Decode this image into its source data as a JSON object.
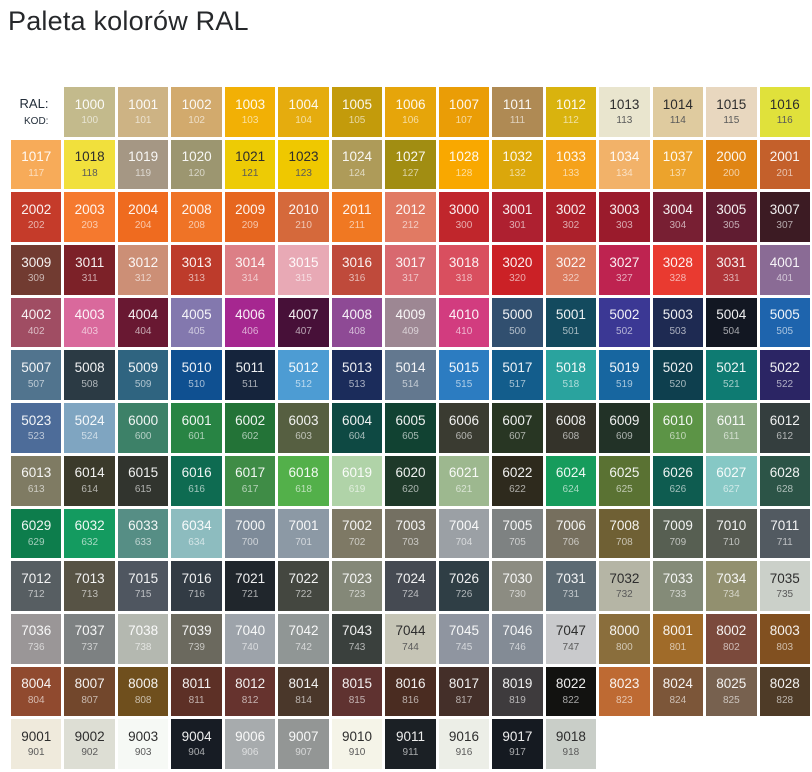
{
  "title": "Paleta kolorów RAL",
  "legend": {
    "ral_label": "RAL:",
    "kod_label": "KOD:"
  },
  "chart_data": {
    "type": "table",
    "title": "Paleta kolorów RAL",
    "grid_columns": 15,
    "first_cell": "row-header-labels (RAL: / KOD:)",
    "cells": [
      {
        "ral": "1000",
        "kod": "100",
        "hex": "#C3BA8C"
      },
      {
        "ral": "1001",
        "kod": "101",
        "hex": "#CDB384"
      },
      {
        "ral": "1002",
        "kod": "102",
        "hex": "#D2AA6D"
      },
      {
        "ral": "1003",
        "kod": "103",
        "hex": "#F2B005"
      },
      {
        "ral": "1004",
        "kod": "104",
        "hex": "#E5AC0E"
      },
      {
        "ral": "1005",
        "kod": "105",
        "hex": "#C39B0B"
      },
      {
        "ral": "1006",
        "kod": "106",
        "hex": "#E6A50A"
      },
      {
        "ral": "1007",
        "kod": "107",
        "hex": "#EA9D06"
      },
      {
        "ral": "1011",
        "kod": "111",
        "hex": "#AF8A54"
      },
      {
        "ral": "1012",
        "kod": "112",
        "hex": "#D9B30E"
      },
      {
        "ral": "1013",
        "kod": "113",
        "hex": "#E9E5CE",
        "dark": true
      },
      {
        "ral": "1014",
        "kod": "114",
        "hex": "#DFCB9F",
        "dark": true
      },
      {
        "ral": "1015",
        "kod": "115",
        "hex": "#E8D7BF",
        "dark": true
      },
      {
        "ral": "1016",
        "kod": "116",
        "hex": "#E0E13B",
        "dark": true
      },
      {
        "ral": "1017",
        "kod": "117",
        "hex": "#F7AB59"
      },
      {
        "ral": "1018",
        "kod": "118",
        "hex": "#F1E03C",
        "dark": true
      },
      {
        "ral": "1019",
        "kod": "119",
        "hex": "#A59784"
      },
      {
        "ral": "1020",
        "kod": "120",
        "hex": "#9C9670"
      },
      {
        "ral": "1021",
        "kod": "121",
        "hex": "#EDCB05",
        "dark": true
      },
      {
        "ral": "1023",
        "kod": "123",
        "hex": "#EFC800",
        "dark": true
      },
      {
        "ral": "1024",
        "kod": "124",
        "hex": "#AE9B59"
      },
      {
        "ral": "1027",
        "kod": "127",
        "hex": "#A18D12"
      },
      {
        "ral": "1028",
        "kod": "128",
        "hex": "#F9A800"
      },
      {
        "ral": "1032",
        "kod": "132",
        "hex": "#DBA70B"
      },
      {
        "ral": "1033",
        "kod": "133",
        "hex": "#F5A21B"
      },
      {
        "ral": "1034",
        "kod": "134",
        "hex": "#F2B269"
      },
      {
        "ral": "1037",
        "kod": "137",
        "hex": "#ECA32C"
      },
      {
        "ral": "2000",
        "kod": "200",
        "hex": "#E08514"
      },
      {
        "ral": "2001",
        "kod": "201",
        "hex": "#C4602B"
      },
      {
        "ral": "2002",
        "kod": "202",
        "hex": "#C53B2A"
      },
      {
        "ral": "2003",
        "kod": "203",
        "hex": "#F5792E"
      },
      {
        "ral": "2004",
        "kod": "204",
        "hex": "#EF6B1F"
      },
      {
        "ral": "2008",
        "kod": "208",
        "hex": "#EF7326"
      },
      {
        "ral": "2009",
        "kod": "209",
        "hex": "#E6661F"
      },
      {
        "ral": "2010",
        "kod": "210",
        "hex": "#D5693B"
      },
      {
        "ral": "2011",
        "kod": "211",
        "hex": "#F07822"
      },
      {
        "ral": "2012",
        "kod": "212",
        "hex": "#E17A63"
      },
      {
        "ral": "3000",
        "kod": "300",
        "hex": "#C0262C"
      },
      {
        "ral": "3001",
        "kod": "301",
        "hex": "#AE2030"
      },
      {
        "ral": "3002",
        "kod": "302",
        "hex": "#AC202B"
      },
      {
        "ral": "3003",
        "kod": "303",
        "hex": "#9A1B2C"
      },
      {
        "ral": "3004",
        "kod": "304",
        "hex": "#781F33"
      },
      {
        "ral": "3005",
        "kod": "305",
        "hex": "#601C31"
      },
      {
        "ral": "3007",
        "kod": "307",
        "hex": "#3C1B23"
      },
      {
        "ral": "3009",
        "kod": "309",
        "hex": "#713B31"
      },
      {
        "ral": "3011",
        "kod": "311",
        "hex": "#7C2128"
      },
      {
        "ral": "3012",
        "kod": "312",
        "hex": "#CC8F76"
      },
      {
        "ral": "3013",
        "kod": "313",
        "hex": "#BD3B2B"
      },
      {
        "ral": "3014",
        "kod": "314",
        "hex": "#DC7F86"
      },
      {
        "ral": "3015",
        "kod": "315",
        "hex": "#E8A9B5"
      },
      {
        "ral": "3016",
        "kod": "316",
        "hex": "#BF4A3B"
      },
      {
        "ral": "3017",
        "kod": "317",
        "hex": "#D8696F"
      },
      {
        "ral": "3018",
        "kod": "318",
        "hex": "#D94F5F"
      },
      {
        "ral": "3020",
        "kod": "320",
        "hex": "#CB2126"
      },
      {
        "ral": "3022",
        "kod": "322",
        "hex": "#DA795C"
      },
      {
        "ral": "3027",
        "kod": "327",
        "hex": "#BE2350"
      },
      {
        "ral": "3028",
        "kod": "328",
        "hex": "#E93A30"
      },
      {
        "ral": "3031",
        "kod": "331",
        "hex": "#AE3338"
      },
      {
        "ral": "4001",
        "kod": "401",
        "hex": "#8A6B95"
      },
      {
        "ral": "4002",
        "kod": "402",
        "hex": "#A04D63"
      },
      {
        "ral": "4003",
        "kod": "403",
        "hex": "#D9699C"
      },
      {
        "ral": "4004",
        "kod": "404",
        "hex": "#691832"
      },
      {
        "ral": "4005",
        "kod": "405",
        "hex": "#8378AE"
      },
      {
        "ral": "4006",
        "kod": "406",
        "hex": "#A62790"
      },
      {
        "ral": "4007",
        "kod": "407",
        "hex": "#471038"
      },
      {
        "ral": "4008",
        "kod": "408",
        "hex": "#8E4A95"
      },
      {
        "ral": "4009",
        "kod": "409",
        "hex": "#9D8793"
      },
      {
        "ral": "4010",
        "kod": "410",
        "hex": "#D23C7F"
      },
      {
        "ral": "5000",
        "kod": "500",
        "hex": "#314F6F"
      },
      {
        "ral": "5001",
        "kod": "501",
        "hex": "#134A5E"
      },
      {
        "ral": "5002",
        "kod": "502",
        "hex": "#3B3894"
      },
      {
        "ral": "5003",
        "kod": "503",
        "hex": "#1E2A52"
      },
      {
        "ral": "5004",
        "kod": "504",
        "hex": "#121722"
      },
      {
        "ral": "5005",
        "kod": "505",
        "hex": "#1E64AD"
      },
      {
        "ral": "5007",
        "kod": "507",
        "hex": "#51748E"
      },
      {
        "ral": "5008",
        "kod": "508",
        "hex": "#2B3A44"
      },
      {
        "ral": "5009",
        "kod": "509",
        "hex": "#2F6480"
      },
      {
        "ral": "5010",
        "kod": "510",
        "hex": "#0F5091"
      },
      {
        "ral": "5011",
        "kod": "511",
        "hex": "#15243C"
      },
      {
        "ral": "5012",
        "kod": "512",
        "hex": "#4D9CD3"
      },
      {
        "ral": "5013",
        "kod": "513",
        "hex": "#1B2C5B"
      },
      {
        "ral": "5014",
        "kod": "514",
        "hex": "#63788F"
      },
      {
        "ral": "5015",
        "kod": "515",
        "hex": "#2C7CC1"
      },
      {
        "ral": "5017",
        "kod": "517",
        "hex": "#135D8C"
      },
      {
        "ral": "5018",
        "kod": "518",
        "hex": "#2AA39E"
      },
      {
        "ral": "5019",
        "kod": "519",
        "hex": "#1766A0"
      },
      {
        "ral": "5020",
        "kod": "520",
        "hex": "#0E3F4E"
      },
      {
        "ral": "5021",
        "kod": "521",
        "hex": "#0E7B72"
      },
      {
        "ral": "5022",
        "kod": "522",
        "hex": "#2B2564"
      },
      {
        "ral": "5023",
        "kod": "523",
        "hex": "#4D6C99"
      },
      {
        "ral": "5024",
        "kod": "524",
        "hex": "#7FA5C1"
      },
      {
        "ral": "6000",
        "kod": "600",
        "hex": "#3D8168"
      },
      {
        "ral": "6001",
        "kod": "601",
        "hex": "#288444"
      },
      {
        "ral": "6002",
        "kod": "602",
        "hex": "#237337"
      },
      {
        "ral": "6003",
        "kod": "603",
        "hex": "#565F41"
      },
      {
        "ral": "6004",
        "kod": "604",
        "hex": "#0E4943"
      },
      {
        "ral": "6005",
        "kod": "605",
        "hex": "#114232"
      },
      {
        "ral": "6006",
        "kod": "606",
        "hex": "#3A3B31"
      },
      {
        "ral": "6007",
        "kod": "607",
        "hex": "#283623"
      },
      {
        "ral": "6008",
        "kod": "608",
        "hex": "#34332A"
      },
      {
        "ral": "6009",
        "kod": "609",
        "hex": "#223227"
      },
      {
        "ral": "6010",
        "kod": "610",
        "hex": "#5C9446"
      },
      {
        "ral": "6011",
        "kod": "611",
        "hex": "#8AA882"
      },
      {
        "ral": "6012",
        "kod": "612",
        "hex": "#343E3E"
      },
      {
        "ral": "6013",
        "kod": "613",
        "hex": "#7F7B63"
      },
      {
        "ral": "6014",
        "kod": "614",
        "hex": "#3B3A2B"
      },
      {
        "ral": "6015",
        "kod": "615",
        "hex": "#31342E"
      },
      {
        "ral": "6016",
        "kod": "616",
        "hex": "#0E6B51"
      },
      {
        "ral": "6017",
        "kod": "617",
        "hex": "#3F8C46"
      },
      {
        "ral": "6018",
        "kod": "618",
        "hex": "#53B04A"
      },
      {
        "ral": "6019",
        "kod": "619",
        "hex": "#B0D3A8"
      },
      {
        "ral": "6020",
        "kod": "620",
        "hex": "#1E3929"
      },
      {
        "ral": "6021",
        "kod": "621",
        "hex": "#9DB88F"
      },
      {
        "ral": "6022",
        "kod": "622",
        "hex": "#2E2A1D"
      },
      {
        "ral": "6024",
        "kod": "624",
        "hex": "#169C5C"
      },
      {
        "ral": "6025",
        "kod": "625",
        "hex": "#5A7233"
      },
      {
        "ral": "6026",
        "kod": "626",
        "hex": "#0E5C50"
      },
      {
        "ral": "6027",
        "kod": "627",
        "hex": "#86C8C5"
      },
      {
        "ral": "6028",
        "kod": "628",
        "hex": "#2C5447"
      },
      {
        "ral": "6029",
        "kod": "629",
        "hex": "#0D7D4C"
      },
      {
        "ral": "6032",
        "kod": "632",
        "hex": "#149B60"
      },
      {
        "ral": "6033",
        "kod": "633",
        "hex": "#568E85"
      },
      {
        "ral": "6034",
        "kod": "634",
        "hex": "#8DBCBF"
      },
      {
        "ral": "7000",
        "kod": "700",
        "hex": "#7E8B99"
      },
      {
        "ral": "7001",
        "kod": "701",
        "hex": "#8C99A5"
      },
      {
        "ral": "7002",
        "kod": "702",
        "hex": "#7E7965"
      },
      {
        "ral": "7003",
        "kod": "703",
        "hex": "#747062"
      },
      {
        "ral": "7004",
        "kod": "704",
        "hex": "#9BA0A5"
      },
      {
        "ral": "7005",
        "kod": "705",
        "hex": "#7E8282"
      },
      {
        "ral": "7006",
        "kod": "706",
        "hex": "#766F5E"
      },
      {
        "ral": "7008",
        "kod": "708",
        "hex": "#6F6034"
      },
      {
        "ral": "7009",
        "kod": "709",
        "hex": "#575F52"
      },
      {
        "ral": "7010",
        "kod": "710",
        "hex": "#555950"
      },
      {
        "ral": "7011",
        "kod": "711",
        "hex": "#525A61"
      },
      {
        "ral": "7012",
        "kod": "712",
        "hex": "#575E62"
      },
      {
        "ral": "7013",
        "kod": "713",
        "hex": "#575345"
      },
      {
        "ral": "7015",
        "kod": "715",
        "hex": "#4F5660"
      },
      {
        "ral": "7016",
        "kod": "716",
        "hex": "#323B44"
      },
      {
        "ral": "7021",
        "kod": "721",
        "hex": "#20262C"
      },
      {
        "ral": "7022",
        "kod": "722",
        "hex": "#444740"
      },
      {
        "ral": "7023",
        "kod": "723",
        "hex": "#848878"
      },
      {
        "ral": "7024",
        "kod": "724",
        "hex": "#454A52"
      },
      {
        "ral": "7026",
        "kod": "726",
        "hex": "#2F3E45"
      },
      {
        "ral": "7030",
        "kod": "730",
        "hex": "#8C8C82"
      },
      {
        "ral": "7031",
        "kod": "731",
        "hex": "#5C6A73"
      },
      {
        "ral": "7032",
        "kod": "732",
        "hex": "#B5B5A5",
        "dark": true
      },
      {
        "ral": "7033",
        "kod": "733",
        "hex": "#848B78"
      },
      {
        "ral": "7034",
        "kod": "734",
        "hex": "#92906F"
      },
      {
        "ral": "7035",
        "kod": "735",
        "hex": "#CBD0C9",
        "dark": true
      },
      {
        "ral": "7036",
        "kod": "736",
        "hex": "#9A9697"
      },
      {
        "ral": "7037",
        "kod": "737",
        "hex": "#7D8182"
      },
      {
        "ral": "7038",
        "kod": "738",
        "hex": "#B4B8B0"
      },
      {
        "ral": "7039",
        "kod": "739",
        "hex": "#6B695E"
      },
      {
        "ral": "7040",
        "kod": "740",
        "hex": "#9DA3AA"
      },
      {
        "ral": "7042",
        "kod": "742",
        "hex": "#909695"
      },
      {
        "ral": "7043",
        "kod": "743",
        "hex": "#3A403D"
      },
      {
        "ral": "7044",
        "kod": "744",
        "hex": "#C6C5B6",
        "dark": true
      },
      {
        "ral": "7045",
        "kod": "745",
        "hex": "#8F95A0"
      },
      {
        "ral": "7046",
        "kod": "746",
        "hex": "#838B95"
      },
      {
        "ral": "7047",
        "kod": "747",
        "hex": "#C9CACC",
        "dark": true
      },
      {
        "ral": "8000",
        "kod": "800",
        "hex": "#8A6E3C"
      },
      {
        "ral": "8001",
        "kod": "801",
        "hex": "#A06B29"
      },
      {
        "ral": "8002",
        "kod": "802",
        "hex": "#7B4A3C"
      },
      {
        "ral": "8003",
        "kod": "803",
        "hex": "#815020"
      },
      {
        "ral": "8004",
        "kod": "804",
        "hex": "#904A2F"
      },
      {
        "ral": "8007",
        "kod": "807",
        "hex": "#72472C"
      },
      {
        "ral": "8008",
        "kod": "808",
        "hex": "#6F4F1D"
      },
      {
        "ral": "8011",
        "kod": "811",
        "hex": "#5D3026"
      },
      {
        "ral": "8012",
        "kod": "812",
        "hex": "#66332E"
      },
      {
        "ral": "8014",
        "kod": "814",
        "hex": "#4A372A"
      },
      {
        "ral": "8015",
        "kod": "815",
        "hex": "#5F3230"
      },
      {
        "ral": "8016",
        "kod": "816",
        "hex": "#4A2C21"
      },
      {
        "ral": "8017",
        "kod": "817",
        "hex": "#442F29"
      },
      {
        "ral": "8019",
        "kod": "819",
        "hex": "#3E3B3D"
      },
      {
        "ral": "8022",
        "kod": "822",
        "hex": "#121210"
      },
      {
        "ral": "8023",
        "kod": "823",
        "hex": "#BE6A33"
      },
      {
        "ral": "8024",
        "kod": "824",
        "hex": "#7C5639"
      },
      {
        "ral": "8025",
        "kod": "825",
        "hex": "#77614F"
      },
      {
        "ral": "8028",
        "kod": "828",
        "hex": "#4E3B27"
      },
      {
        "ral": "9001",
        "kod": "901",
        "hex": "#EFEADC",
        "dark": true
      },
      {
        "ral": "9002",
        "kod": "902",
        "hex": "#DDDED4",
        "dark": true
      },
      {
        "ral": "9003",
        "kod": "903",
        "hex": "#F6F9F5",
        "dark": true
      },
      {
        "ral": "9004",
        "kod": "904",
        "hex": "#171C24"
      },
      {
        "ral": "9006",
        "kod": "906",
        "hex": "#A7ABAD"
      },
      {
        "ral": "9007",
        "kod": "907",
        "hex": "#939695"
      },
      {
        "ral": "9010",
        "kod": "910",
        "hex": "#F5F4E8",
        "dark": true
      },
      {
        "ral": "9011",
        "kod": "911",
        "hex": "#1B2025"
      },
      {
        "ral": "9016",
        "kod": "916",
        "hex": "#ECEEE7",
        "dark": true
      },
      {
        "ral": "9017",
        "kod": "917",
        "hex": "#151A21"
      },
      {
        "ral": "9018",
        "kod": "918",
        "hex": "#C9CEC8",
        "dark": true
      }
    ]
  }
}
